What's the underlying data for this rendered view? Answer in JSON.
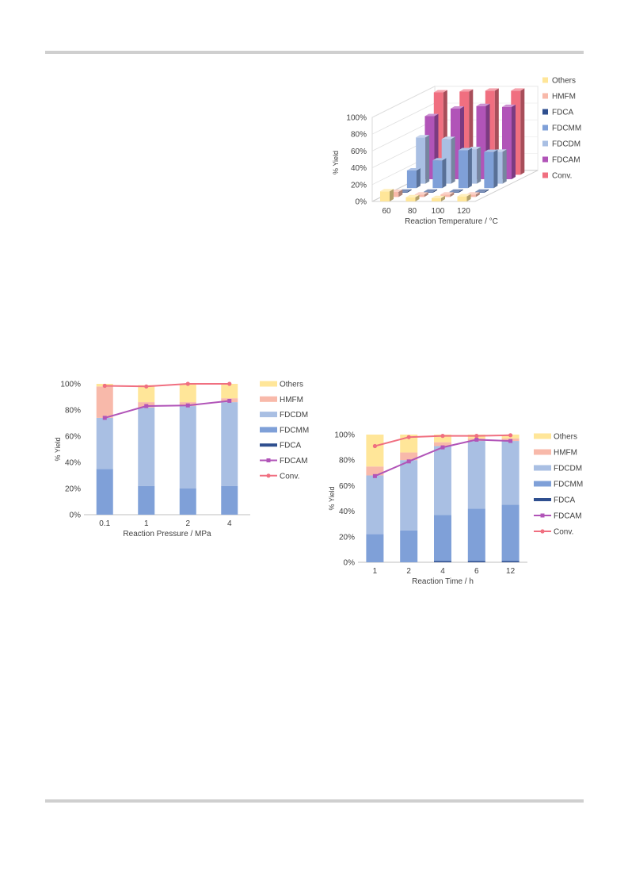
{
  "colors": {
    "others": "#FFE699",
    "hmfm": "#F8B9AA",
    "fdcdm": "#A9BFE3",
    "fdcmm": "#7FA0D8",
    "fdca": "#2F4F8F",
    "fdcam": "#B154B8",
    "conv": "#F06F80",
    "axis": "#BFBFBF",
    "text": "#404040"
  },
  "chart_data": [
    {
      "type": "bar",
      "subtype": "3d-column",
      "ylabel": "% Yield",
      "xlabel": "Reaction Temperature / °C",
      "categories": [
        "60",
        "80",
        "100",
        "120"
      ],
      "ylim": [
        0,
        100
      ],
      "yticks": [
        "0%",
        "20%",
        "40%",
        "60%",
        "80%",
        "100%"
      ],
      "legend_position": "right",
      "legend": [
        "Others",
        "HMFM",
        "FDCA",
        "FDCMM",
        "FDCDM",
        "FDCAM",
        "Conv."
      ],
      "series": [
        {
          "name": "Others",
          "key": "others",
          "values": [
            12,
            5,
            4,
            6
          ]
        },
        {
          "name": "HMFM",
          "key": "hmfm",
          "values": [
            6,
            3,
            3,
            3
          ]
        },
        {
          "name": "FDCA",
          "key": "fdca",
          "values": [
            1,
            1,
            1,
            1
          ]
        },
        {
          "name": "FDCMM",
          "key": "fdcmm",
          "values": [
            21,
            33,
            45,
            43
          ]
        },
        {
          "name": "FDCDM",
          "key": "fdcdm",
          "values": [
            55,
            53,
            41,
            38
          ]
        },
        {
          "name": "FDCAM",
          "key": "fdcam",
          "values": [
            75,
            84,
            87,
            86
          ]
        },
        {
          "name": "Conv.",
          "key": "conv",
          "values": [
            98,
            99,
            100,
            100
          ]
        }
      ]
    },
    {
      "type": "bar",
      "subtype": "stacked-with-lines",
      "ylabel": "% Yield",
      "xlabel": "Reaction Pressure /  MPa",
      "categories": [
        "0.1",
        "1",
        "2",
        "4"
      ],
      "ylim": [
        0,
        100
      ],
      "yticks": [
        "0%",
        "20%",
        "40%",
        "60%",
        "80%",
        "100%"
      ],
      "legend_position": "right",
      "legend": [
        "Others",
        "HMFM",
        "FDCDM",
        "FDCMM",
        "FDCA",
        "FDCAM",
        "Conv."
      ],
      "stacks": [
        {
          "name": "FDCA",
          "key": "fdca",
          "values": [
            0,
            0,
            0,
            0
          ]
        },
        {
          "name": "FDCMM",
          "key": "fdcmm",
          "values": [
            35,
            22,
            20,
            22
          ]
        },
        {
          "name": "FDCDM",
          "key": "fdcdm",
          "values": [
            39,
            60,
            63,
            64
          ]
        },
        {
          "name": "HMFM",
          "key": "hmfm",
          "values": [
            24,
            4,
            3,
            3
          ]
        },
        {
          "name": "Others",
          "key": "others",
          "values": [
            2,
            13,
            14,
            11
          ]
        }
      ],
      "lines": [
        {
          "name": "FDCAM",
          "key": "fdcam",
          "marker": "square",
          "values": [
            74,
            83,
            83.5,
            87
          ]
        },
        {
          "name": "Conv.",
          "key": "conv",
          "marker": "circle",
          "values": [
            98.5,
            98,
            100,
            100
          ]
        }
      ]
    },
    {
      "type": "bar",
      "subtype": "stacked-with-lines",
      "ylabel": "% Yield",
      "xlabel": "Reaction Time / h",
      "categories": [
        "1",
        "2",
        "4",
        "6",
        "12"
      ],
      "ylim": [
        0,
        100
      ],
      "yticks": [
        "0%",
        "20%",
        "40%",
        "60%",
        "80%",
        "100%"
      ],
      "legend_position": "right",
      "legend": [
        "Others",
        "HMFM",
        "FDCDM",
        "FDCMM",
        "FDCA",
        "FDCAM",
        "Conv."
      ],
      "stacks": [
        {
          "name": "FDCA",
          "key": "fdca",
          "values": [
            0,
            0,
            1,
            1,
            1
          ]
        },
        {
          "name": "FDCMM",
          "key": "fdcmm",
          "values": [
            22,
            25,
            36,
            41,
            44
          ]
        },
        {
          "name": "FDCDM",
          "key": "fdcdm",
          "values": [
            46,
            55,
            54,
            53,
            50
          ]
        },
        {
          "name": "HMFM",
          "key": "hmfm",
          "values": [
            7,
            6,
            3,
            2,
            2
          ]
        },
        {
          "name": "Others",
          "key": "others",
          "values": [
            25,
            14,
            6,
            3,
            3
          ]
        }
      ],
      "lines": [
        {
          "name": "FDCAM",
          "key": "fdcam",
          "marker": "square",
          "values": [
            67.5,
            79,
            90,
            96,
            95
          ]
        },
        {
          "name": "Conv.",
          "key": "conv",
          "marker": "circle",
          "values": [
            91,
            98,
            99,
            99,
            99.5
          ]
        }
      ]
    }
  ]
}
